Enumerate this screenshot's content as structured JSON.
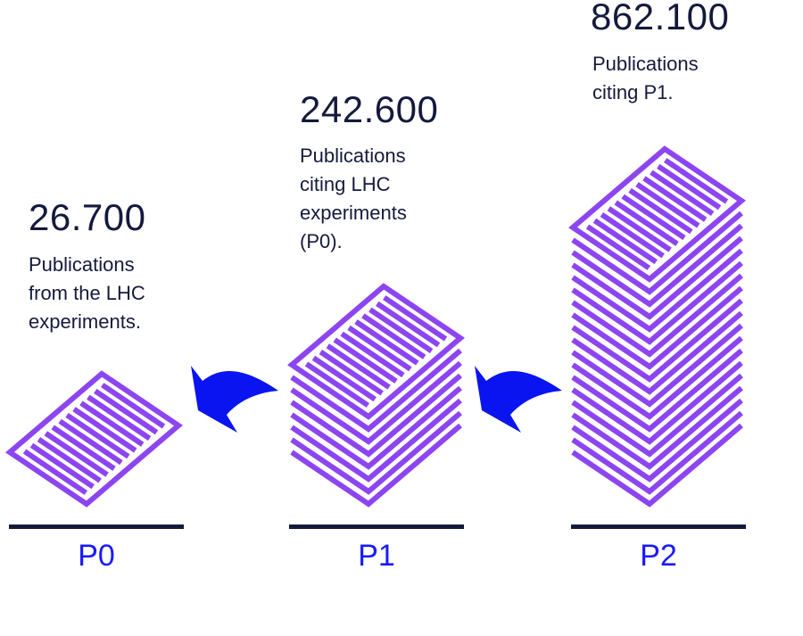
{
  "stages": [
    {
      "label": "P0",
      "count": "26.700",
      "description": "Publications\nfrom the LHC\nexperiments.",
      "stack_layers": 1
    },
    {
      "label": "P1",
      "count": "242.600",
      "description": "Publications\nciting LHC\nexperiments\n(P0).",
      "stack_layers": 8
    },
    {
      "label": "P2",
      "count": "862.100",
      "description": "Publications\nciting P1.",
      "stack_layers": 19
    }
  ],
  "colors": {
    "text": "#141a3c",
    "label": "#1a1aff",
    "paper": "#8c45f0",
    "arrow": "#0a14f0",
    "baseline": "#141a3c"
  }
}
